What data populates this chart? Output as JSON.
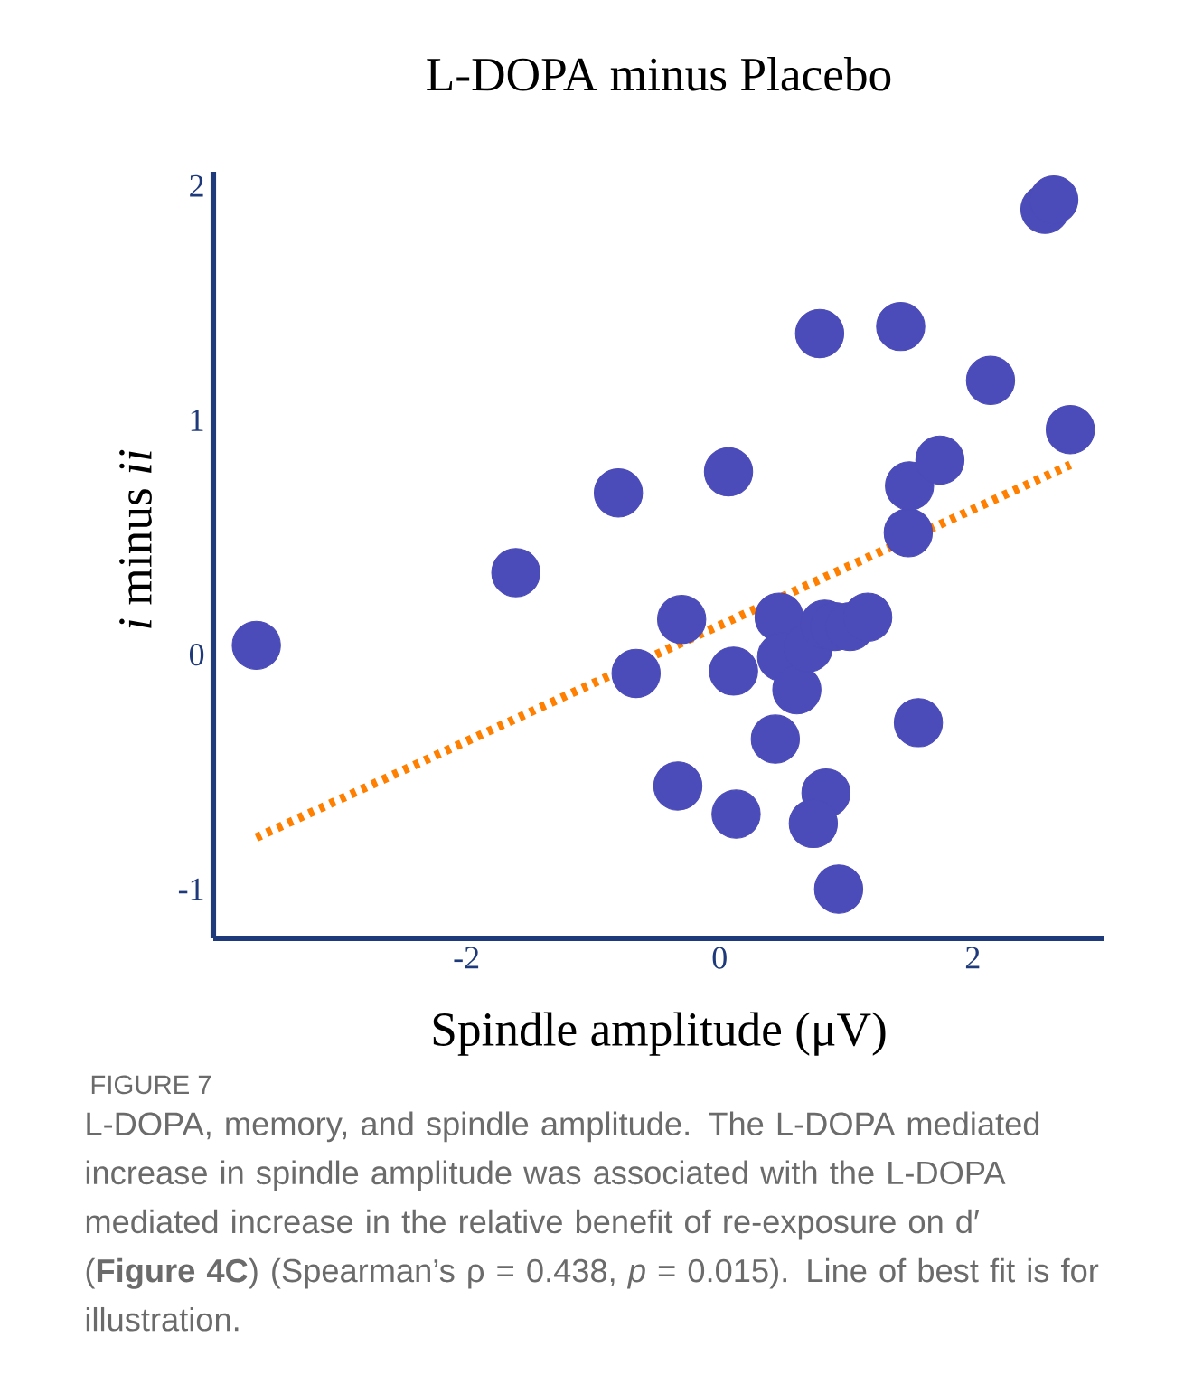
{
  "chart_data": {
    "type": "scatter",
    "title": "L-DOPA minus Placebo",
    "xlabel": "Spindle amplitude (μV)",
    "ylabel": "*i* minus *ii*",
    "xlim": [
      -4.0,
      3.04
    ],
    "ylim": [
      -1.21,
      2.06
    ],
    "xticks": [
      -2,
      0,
      2
    ],
    "yticks": [
      -1,
      0,
      1,
      2
    ],
    "marker": "circle",
    "series": [
      {
        "color": "#4b4bb9",
        "x": [
          -3.66,
          -1.61,
          -0.8,
          0.07,
          -0.66,
          -0.3,
          0.11,
          -0.33,
          0.13,
          0.44,
          0.47,
          0.49,
          0.61,
          0.7,
          0.83,
          0.91,
          1.03,
          1.17,
          0.84,
          0.74,
          0.94,
          1.57,
          1.49,
          1.5,
          1.74,
          2.14,
          2.77,
          0.79,
          1.43,
          2.57,
          2.64
        ],
        "values": [
          0.04,
          0.35,
          0.69,
          0.78,
          -0.08,
          0.15,
          -0.07,
          -0.56,
          -0.68,
          -0.36,
          0.16,
          -0.01,
          -0.15,
          0.03,
          0.13,
          0.12,
          0.12,
          0.16,
          -0.59,
          -0.72,
          -1.0,
          -0.29,
          0.52,
          0.72,
          0.83,
          1.17,
          0.96,
          1.37,
          1.4,
          1.9,
          1.94
        ]
      },
      {
        "type": "line",
        "color": "#ff8000",
        "line_style": "dotted",
        "marker": "none",
        "x": [
          -3.66,
          2.77
        ],
        "values": [
          -0.78,
          0.81
        ]
      }
    ],
    "annotations": [
      "FIGURE 7",
      "L-DOPA, memory, and spindle amplitude. The L-DOPA mediated increase in spindle amplitude was associated with the L-DOPA mediated increase in the relative benefit of re-exposure on d′ (**Figure 4C**) (Spearman’s ρ = 0.438, *p* = 0.015). Line of best fit is for illustration."
    ]
  }
}
